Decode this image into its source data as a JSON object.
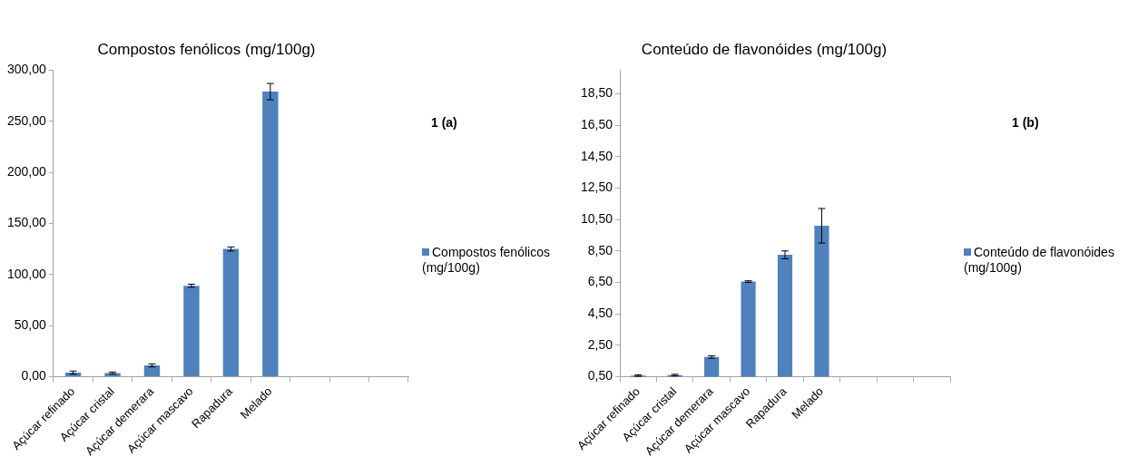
{
  "chart_data": [
    {
      "type": "bar",
      "title": "Compostos fenólicos (mg/100g)",
      "categories": [
        "Açúcar refinado",
        "Açúcar cristal",
        "Açúcar demerara",
        "Açúcar mascavo",
        "Rapadura",
        "Melado",
        null,
        null,
        null
      ],
      "series": [
        {
          "name": "Compostos fenólicos (mg/100g)",
          "color": "#4f81bd",
          "values": [
            4,
            3.5,
            11,
            89,
            125,
            279,
            null,
            null,
            null
          ],
          "errors": [
            1.5,
            1,
            1.5,
            1.5,
            2,
            8,
            null,
            null,
            null
          ]
        }
      ],
      "ylim": [
        0,
        300
      ],
      "yticks": [
        {
          "value": 0,
          "label": "0,00"
        },
        {
          "value": 50,
          "label": "50,00"
        },
        {
          "value": 100,
          "label": "100,00"
        },
        {
          "value": 150,
          "label": "150,00"
        },
        {
          "value": 200,
          "label": "200,00"
        },
        {
          "value": 250,
          "label": "250,00"
        },
        {
          "value": 300,
          "label": "300,00"
        }
      ],
      "grid": false,
      "legend": "right",
      "annotations": [
        "1 (a)"
      ]
    },
    {
      "type": "bar",
      "title": "Conteúdo de flavonóides (mg/100g)",
      "categories": [
        "Açúcar refinado",
        "Açúcar cristal",
        "Açúcar demerara",
        "Açúcar mascavo",
        "Rapadura",
        "Melado",
        null,
        null,
        null
      ],
      "series": [
        {
          "name": "Conteúdo de flavonóides (mg/100g)",
          "color": "#4f81bd",
          "values": [
            0.57,
            0.6,
            1.75,
            6.55,
            8.25,
            10.1,
            null,
            null,
            null
          ],
          "errors": [
            0.05,
            0.05,
            0.08,
            0.05,
            0.25,
            1.1,
            null,
            null,
            null
          ]
        }
      ],
      "ylim": [
        0.5,
        20
      ],
      "yticks": [
        {
          "value": 0.5,
          "label": "0,50"
        },
        {
          "value": 2.5,
          "label": "2,50"
        },
        {
          "value": 4.5,
          "label": "4,50"
        },
        {
          "value": 6.5,
          "label": "6,50"
        },
        {
          "value": 8.5,
          "label": "8,50"
        },
        {
          "value": 10.5,
          "label": "10,50"
        },
        {
          "value": 12.5,
          "label": "12,50"
        },
        {
          "value": 14.5,
          "label": "14,50"
        },
        {
          "value": 16.5,
          "label": "16,50"
        },
        {
          "value": 18.5,
          "label": "18,50"
        }
      ],
      "grid": false,
      "legend": "right",
      "annotations": [
        "1 (b)"
      ]
    }
  ]
}
